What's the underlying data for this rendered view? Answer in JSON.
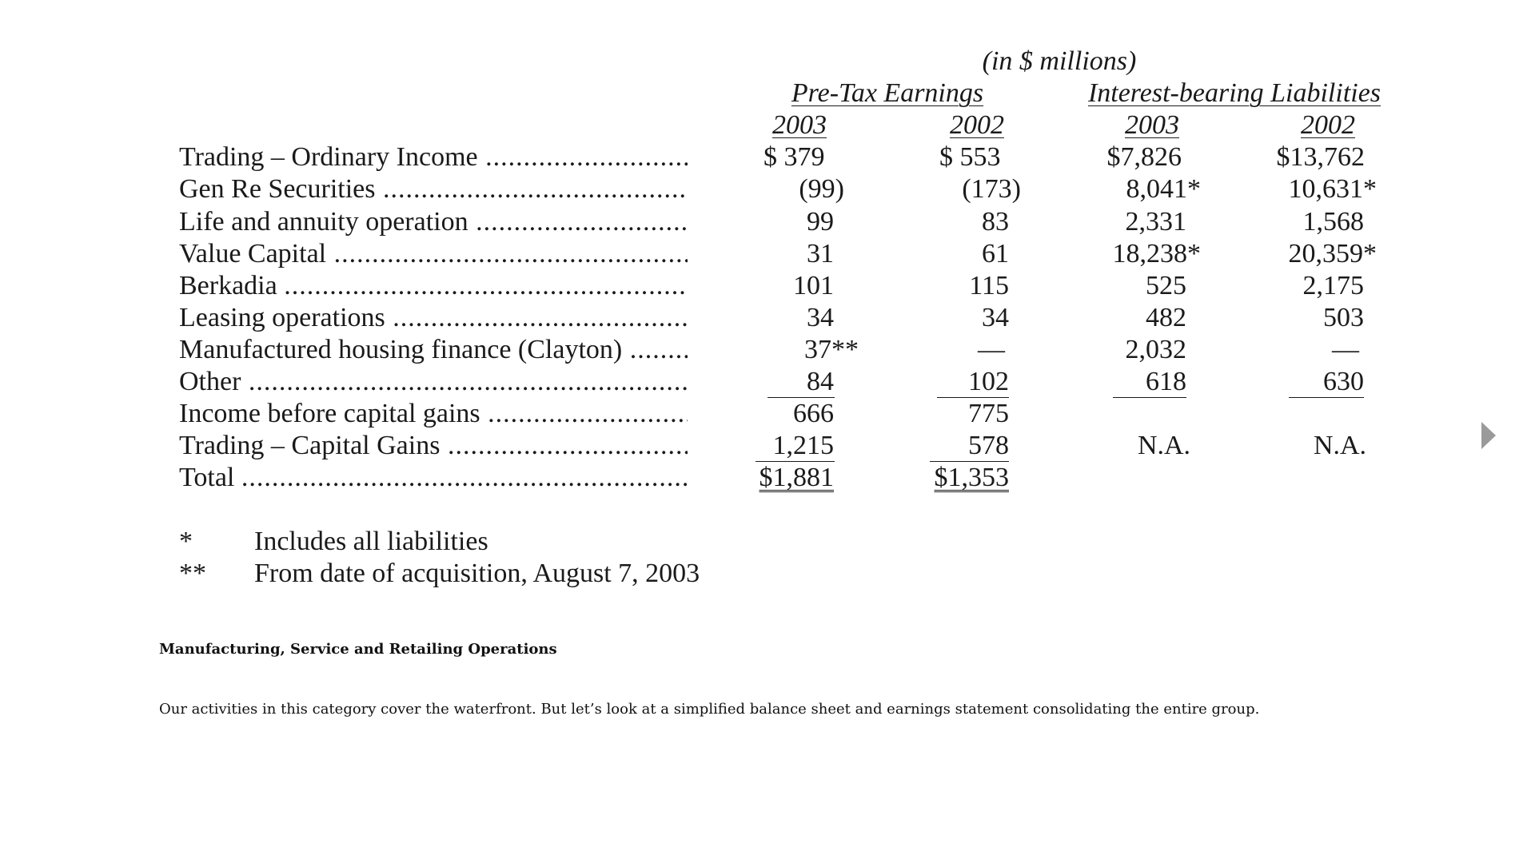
{
  "table": {
    "unit_note": "(in $ millions)",
    "group_headers": [
      "Pre-Tax Earnings",
      "Interest-bearing Liabilities"
    ],
    "year_headers": [
      "2003",
      "2002",
      "2003",
      "2002"
    ],
    "rows": [
      {
        "label": "Trading  – Ordinary Income",
        "values": [
          "$ 379",
          "$ 553",
          "$7,826",
          "$13,762"
        ]
      },
      {
        "label": "Gen Re Securities",
        "values": [
          "(99)",
          "(173)",
          "8,041*",
          "10,631*"
        ]
      },
      {
        "label": "Life and annuity operation",
        "values": [
          "99",
          "83",
          "2,331",
          "1,568"
        ]
      },
      {
        "label": "Value Capital",
        "values": [
          "31",
          "61",
          "18,238*",
          "20,359*"
        ]
      },
      {
        "label": "Berkadia ",
        "values": [
          "101",
          "115",
          "525",
          "2,175"
        ]
      },
      {
        "label": "Leasing operations",
        "values": [
          "34",
          "34",
          "482",
          "503"
        ]
      },
      {
        "label": "Manufactured housing finance (Clayton)",
        "values": [
          "37**",
          "—",
          "2,032",
          "—"
        ]
      },
      {
        "label": "Other",
        "values": [
          "84",
          "102",
          "618",
          "630"
        ]
      },
      {
        "label": "Income before capital gains",
        "values": [
          "666",
          "775",
          "",
          ""
        ]
      },
      {
        "label": "Trading – Capital Gains",
        "values": [
          "1,215",
          "578",
          "N.A.",
          "N.A."
        ]
      },
      {
        "label": "Total ",
        "values": [
          "$1,881",
          "$1,353",
          "",
          ""
        ]
      }
    ],
    "footnotes": [
      {
        "mark": "*",
        "text": "Includes all liabilities"
      },
      {
        "mark": "**",
        "text": "From date of acquisition, August 7, 2003"
      }
    ]
  },
  "section": {
    "heading": "Manufacturing, Service and Retailing Operations",
    "body": "Our activities in this category cover the waterfront. But let’s look at a simplified balance sheet and earnings statement consolidating the entire group."
  },
  "icons": {
    "next_page": "play-triangle-icon"
  },
  "colors": {
    "arrow": "#9a9a9a",
    "text": "#1a1a1a"
  }
}
